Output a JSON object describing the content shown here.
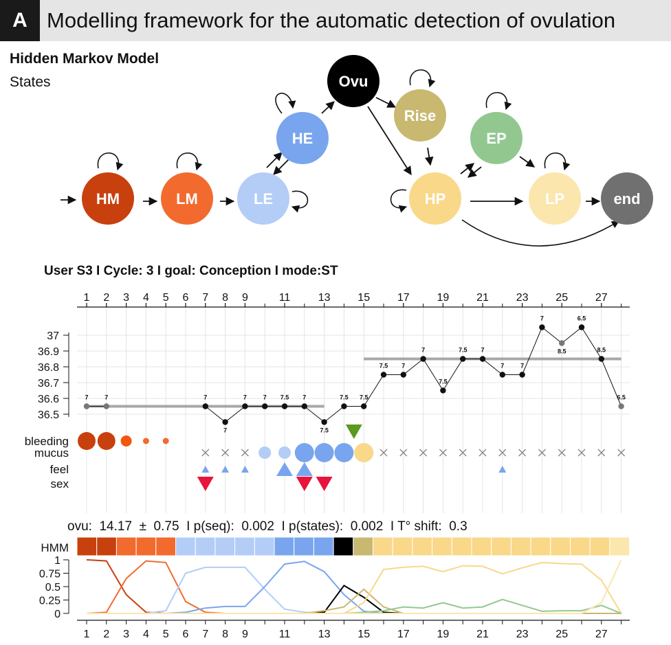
{
  "panel": {
    "letter": "A",
    "title": "Modelling framework for the automatic detection of ovulation"
  },
  "hmm": {
    "title": "Hidden Markov Model",
    "subtitle": "States",
    "states": [
      {
        "id": "HM",
        "label": "HM",
        "color": "#c8400e"
      },
      {
        "id": "LM",
        "label": "LM",
        "color": "#f26a2e"
      },
      {
        "id": "LE",
        "label": "LE",
        "color": "#b3cdf7"
      },
      {
        "id": "HE",
        "label": "HE",
        "color": "#79a5ee"
      },
      {
        "id": "Ovu",
        "label": "Ovu",
        "color": "#000000"
      },
      {
        "id": "Rise",
        "label": "Rise",
        "color": "#c8b870"
      },
      {
        "id": "HP",
        "label": "HP",
        "color": "#f9d889"
      },
      {
        "id": "EP",
        "label": "EP",
        "color": "#92c890"
      },
      {
        "id": "LP",
        "label": "LP",
        "color": "#fbe6ad"
      },
      {
        "id": "end",
        "label": "end",
        "color": "#707070"
      }
    ]
  },
  "user_line": "User S3  I Cycle: 3 I goal: Conception  I  mode:ST",
  "chart_data": [
    {
      "type": "line",
      "name": "temperature",
      "x_ticks_top": [
        "1",
        "2",
        "3",
        "4",
        "5",
        "6",
        "7",
        "8",
        "9",
        "11",
        "13",
        "15",
        "17",
        "19",
        "21",
        "23",
        "25",
        "27"
      ],
      "y_ticks": [
        "36.5",
        "36.6",
        "36.7",
        "36.8",
        "36.9",
        "37"
      ],
      "ylim": [
        36.45,
        37.1
      ],
      "points": [
        {
          "x": 1,
          "y": 36.55,
          "label": "7",
          "grey": true
        },
        {
          "x": 2,
          "y": 36.55,
          "label": "7",
          "grey": true
        },
        {
          "x": 7,
          "y": 36.55,
          "label": "7"
        },
        {
          "x": 8,
          "y": 36.45,
          "label": "7"
        },
        {
          "x": 9,
          "y": 36.55,
          "label": "7"
        },
        {
          "x": 10,
          "y": 36.55,
          "label": "7"
        },
        {
          "x": 11,
          "y": 36.55,
          "label": "7.5"
        },
        {
          "x": 12,
          "y": 36.55,
          "label": "7"
        },
        {
          "x": 13,
          "y": 36.45,
          "label": "7.5"
        },
        {
          "x": 14,
          "y": 36.55,
          "label": "7.5"
        },
        {
          "x": 15,
          "y": 36.55,
          "label": "7.5"
        },
        {
          "x": 16,
          "y": 36.75,
          "label": "7.5"
        },
        {
          "x": 17,
          "y": 36.75,
          "label": "7"
        },
        {
          "x": 18,
          "y": 36.85,
          "label": "7"
        },
        {
          "x": 19,
          "y": 36.65,
          "label": "7.5"
        },
        {
          "x": 20,
          "y": 36.85,
          "label": "7.5"
        },
        {
          "x": 21,
          "y": 36.85,
          "label": "7"
        },
        {
          "x": 22,
          "y": 36.75,
          "label": "7"
        },
        {
          "x": 23,
          "y": 36.75,
          "label": "7"
        },
        {
          "x": 24,
          "y": 37.05,
          "label": "7"
        },
        {
          "x": 25,
          "y": 36.95,
          "label": "8.5",
          "grey": true
        },
        {
          "x": 26,
          "y": 37.05,
          "label": "6.5"
        },
        {
          "x": 27,
          "y": 36.85,
          "label": "8.5"
        },
        {
          "x": 28,
          "y": 36.55,
          "label": "6.5",
          "grey": true
        }
      ],
      "baselines": [
        {
          "x_start": 1,
          "x_end": 13,
          "y": 36.55
        },
        {
          "x_start": 15,
          "x_end": 28,
          "y": 36.85
        }
      ]
    },
    {
      "type": "line",
      "name": "state probabilities",
      "y_ticks": [
        "0",
        "0.25",
        "0.5",
        "0.75",
        "1"
      ],
      "ylim": [
        0,
        1
      ],
      "x_ticks_bottom": [
        "1",
        "2",
        "3",
        "4",
        "5",
        "6",
        "7",
        "8",
        "9",
        "11",
        "13",
        "15",
        "17",
        "19",
        "21",
        "23",
        "25",
        "27"
      ],
      "x": [
        1,
        2,
        3,
        4,
        5,
        6,
        7,
        8,
        9,
        10,
        11,
        12,
        13,
        14,
        15,
        16,
        17,
        18,
        19,
        20,
        21,
        22,
        23,
        24,
        25,
        26,
        27,
        28
      ],
      "series": [
        {
          "color": "#c8400e",
          "values": [
            1,
            0.98,
            0.35,
            0.02,
            0,
            0,
            0,
            0,
            0,
            0,
            0,
            0,
            0,
            0,
            0,
            0,
            0,
            0,
            0,
            0,
            0,
            0,
            0,
            0,
            0,
            0,
            0,
            0
          ]
        },
        {
          "color": "#f26a2e",
          "values": [
            0,
            0.02,
            0.65,
            0.98,
            0.95,
            0.22,
            0.02,
            0,
            0,
            0,
            0,
            0,
            0,
            0,
            0,
            0,
            0,
            0,
            0,
            0,
            0,
            0,
            0,
            0,
            0,
            0,
            0,
            0
          ]
        },
        {
          "color": "#b3cdf7",
          "values": [
            0,
            0,
            0,
            0,
            0.05,
            0.75,
            0.86,
            0.86,
            0.86,
            0.45,
            0.08,
            0.02,
            0,
            0,
            0,
            0,
            0,
            0,
            0,
            0,
            0,
            0,
            0,
            0,
            0,
            0,
            0,
            0
          ]
        },
        {
          "color": "#79a5ee",
          "values": [
            0,
            0,
            0,
            0,
            0,
            0.02,
            0.1,
            0.13,
            0.13,
            0.5,
            0.92,
            0.97,
            0.78,
            0.35,
            0.04,
            0,
            0,
            0,
            0,
            0,
            0,
            0,
            0,
            0,
            0,
            0,
            0,
            0
          ]
        },
        {
          "color": "#000000",
          "values": [
            0,
            0,
            0,
            0,
            0,
            0,
            0,
            0,
            0,
            0,
            0,
            0,
            0.02,
            0.52,
            0.3,
            0.02,
            0,
            0,
            0,
            0,
            0,
            0,
            0,
            0,
            0,
            0,
            0,
            0
          ]
        },
        {
          "color": "#c8b870",
          "values": [
            0,
            0,
            0,
            0,
            0,
            0,
            0,
            0,
            0,
            0,
            0,
            0,
            0.05,
            0.12,
            0.45,
            0.12,
            0,
            0,
            0,
            0,
            0,
            0,
            0,
            0,
            0,
            0,
            0,
            0
          ]
        },
        {
          "color": "#f9d889",
          "values": [
            0,
            0,
            0,
            0,
            0,
            0,
            0,
            0,
            0,
            0,
            0,
            0,
            0,
            0,
            0.2,
            0.82,
            0.86,
            0.88,
            0.78,
            0.89,
            0.88,
            0.74,
            0.85,
            0.95,
            0.93,
            0.92,
            0.62,
            0
          ]
        },
        {
          "color": "#92c890",
          "values": [
            0,
            0,
            0,
            0,
            0,
            0,
            0,
            0,
            0,
            0,
            0,
            0,
            0,
            0,
            0.02,
            0.05,
            0.12,
            0.1,
            0.2,
            0.1,
            0.12,
            0.26,
            0.15,
            0.04,
            0.05,
            0.05,
            0.15,
            0
          ]
        },
        {
          "color": "#fbe6ad",
          "values": [
            0,
            0,
            0,
            0,
            0,
            0,
            0,
            0,
            0,
            0,
            0,
            0,
            0,
            0,
            0,
            0,
            0,
            0,
            0,
            0,
            0,
            0,
            0,
            0,
            0,
            0,
            0.2,
            1
          ]
        }
      ]
    }
  ],
  "observations": {
    "labels": [
      "bleeding",
      "mucus",
      "feel",
      "sex"
    ],
    "bleeding": [
      {
        "day": 1,
        "size": 3,
        "color": "#c8400e"
      },
      {
        "day": 2,
        "size": 3,
        "color": "#c8400e"
      },
      {
        "day": 3,
        "size": 2,
        "color": "#f2560f"
      },
      {
        "day": 4,
        "size": 1,
        "color": "#f26a2e"
      },
      {
        "day": 5,
        "size": 1,
        "color": "#f26a2e"
      }
    ],
    "mucus": [
      {
        "day": 7,
        "kind": "x"
      },
      {
        "day": 8,
        "kind": "x"
      },
      {
        "day": 9,
        "kind": "x"
      },
      {
        "day": 10,
        "kind": "circle",
        "size": 2,
        "color": "#b3cdf7"
      },
      {
        "day": 11,
        "kind": "circle",
        "size": 2,
        "color": "#b3cdf7"
      },
      {
        "day": 12,
        "kind": "circle",
        "size": 3,
        "color": "#79a5ee"
      },
      {
        "day": 13,
        "kind": "circle",
        "size": 3,
        "color": "#79a5ee"
      },
      {
        "day": 14,
        "kind": "circle",
        "size": 3,
        "color": "#79a5ee"
      },
      {
        "day": 15,
        "kind": "circle",
        "size": 3,
        "color": "#f9d889"
      },
      {
        "day": 16,
        "kind": "x"
      },
      {
        "day": 17,
        "kind": "x"
      },
      {
        "day": 18,
        "kind": "x"
      },
      {
        "day": 19,
        "kind": "x"
      },
      {
        "day": 20,
        "kind": "x"
      },
      {
        "day": 21,
        "kind": "x"
      },
      {
        "day": 22,
        "kind": "x"
      },
      {
        "day": 23,
        "kind": "x"
      },
      {
        "day": 24,
        "kind": "x"
      },
      {
        "day": 25,
        "kind": "x"
      },
      {
        "day": 26,
        "kind": "x"
      },
      {
        "day": 27,
        "kind": "x"
      },
      {
        "day": 28,
        "kind": "x"
      }
    ],
    "feel": [
      {
        "day": 7,
        "size": 1
      },
      {
        "day": 8,
        "size": 1
      },
      {
        "day": 9,
        "size": 1
      },
      {
        "day": 11,
        "size": 2
      },
      {
        "day": 12,
        "size": 2
      },
      {
        "day": 22,
        "size": 1
      }
    ],
    "sex": [
      7,
      12,
      13
    ],
    "ovulation_marker_day": 14.5,
    "colors": {
      "feel": "#79a5ee",
      "sex": "#e8143c",
      "marker": "#5a9a1e",
      "x": "#888888"
    }
  },
  "stats_line": "ovu:  14.17  ±  0.75  I p(seq):  0.002  I p(states):  0.002  I T° shift:  0.3",
  "hmm_bar": {
    "label": "HMM",
    "days": [
      "HM",
      "HM",
      "LM",
      "LM",
      "LM",
      "LE",
      "LE",
      "LE",
      "LE",
      "LE",
      "HE",
      "HE",
      "HE",
      "Ovu",
      "Rise",
      "HP",
      "HP",
      "HP",
      "HP",
      "HP",
      "HP",
      "HP",
      "HP",
      "HP",
      "HP",
      "HP",
      "HP",
      "LP"
    ]
  }
}
